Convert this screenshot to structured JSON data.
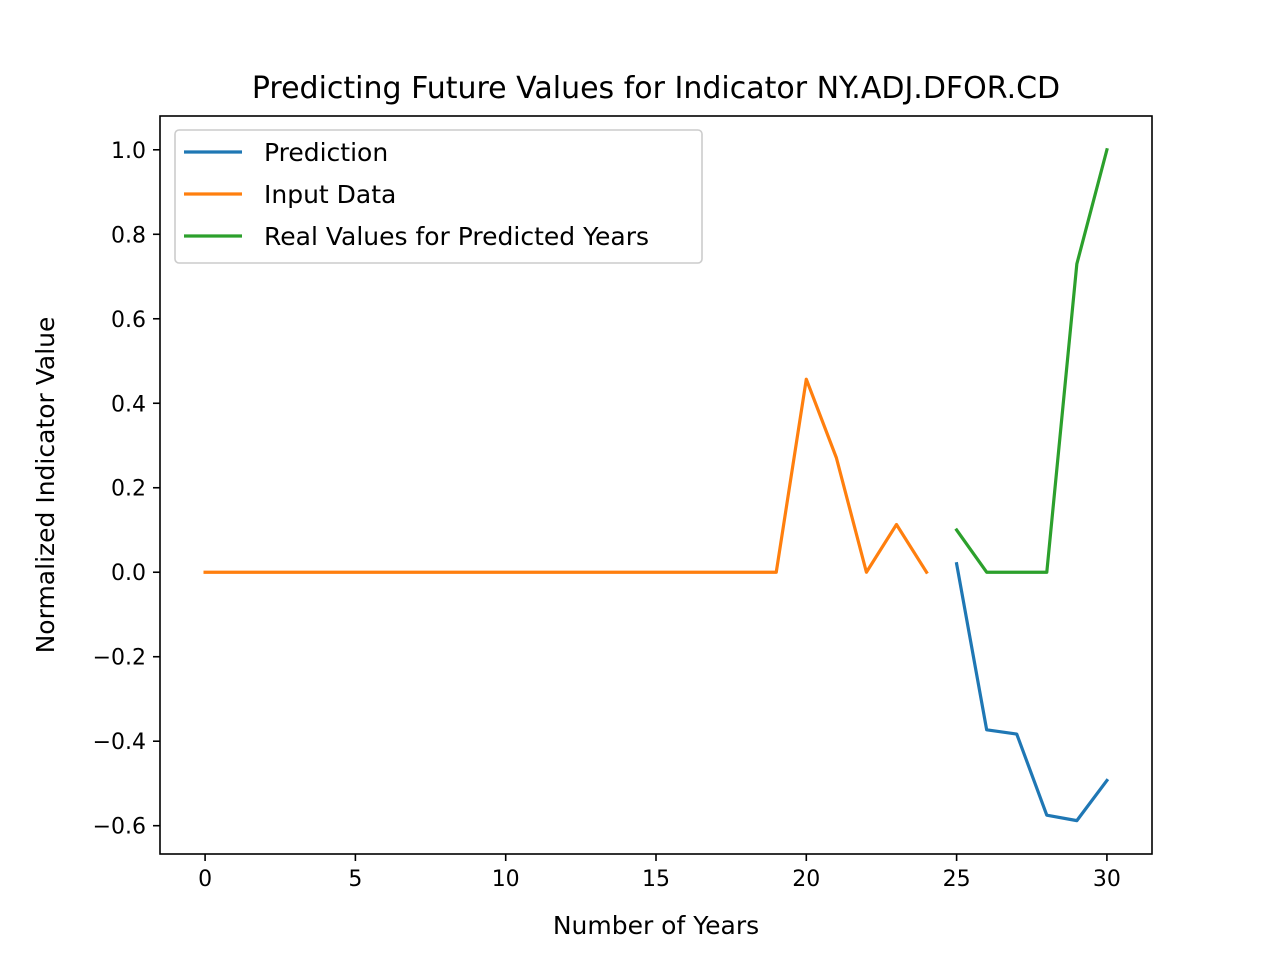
{
  "chart_data": {
    "type": "line",
    "title": "Predicting Future Values for Indicator NY.ADJ.DFOR.CD",
    "xlabel": "Number of Years",
    "ylabel": "Normalized Indicator Value",
    "xlim": [
      -1.5,
      31.5
    ],
    "ylim": [
      -0.667,
      1.08
    ],
    "xticks": [
      0,
      5,
      10,
      15,
      20,
      25,
      30
    ],
    "xtick_labels": [
      "0",
      "5",
      "10",
      "15",
      "20",
      "25",
      "30"
    ],
    "yticks": [
      1.0,
      0.8,
      0.6,
      0.4,
      0.2,
      0.0,
      -0.2,
      -0.4,
      -0.6
    ],
    "ytick_labels": [
      "1.0",
      "0.8",
      "0.6",
      "0.4",
      "0.2",
      "0.0",
      "−0.2",
      "−0.4",
      "−0.6"
    ],
    "grid": false,
    "legend_position": "top-left",
    "series": [
      {
        "name": "Prediction",
        "color": "#1f77b4",
        "x": [
          25,
          26,
          27,
          28,
          29,
          30
        ],
        "y": [
          0.02,
          -0.373,
          -0.383,
          -0.575,
          -0.588,
          -0.493
        ]
      },
      {
        "name": "Input Data",
        "color": "#ff7f0e",
        "x": [
          0,
          1,
          2,
          3,
          4,
          5,
          6,
          7,
          8,
          9,
          10,
          11,
          12,
          13,
          14,
          15,
          16,
          17,
          18,
          19,
          20,
          21,
          22,
          23,
          24
        ],
        "y": [
          0,
          0,
          0,
          0,
          0,
          0,
          0,
          0,
          0,
          0,
          0,
          0,
          0,
          0,
          0,
          0,
          0,
          0,
          0,
          0,
          0.457,
          0.271,
          0,
          0.113,
          0
        ]
      },
      {
        "name": "Real Values for Predicted Years",
        "color": "#2ca02c",
        "x": [
          25,
          26,
          27,
          28,
          29,
          30
        ],
        "y": [
          0.1,
          0,
          0,
          0,
          0.73,
          1.0
        ]
      }
    ]
  }
}
